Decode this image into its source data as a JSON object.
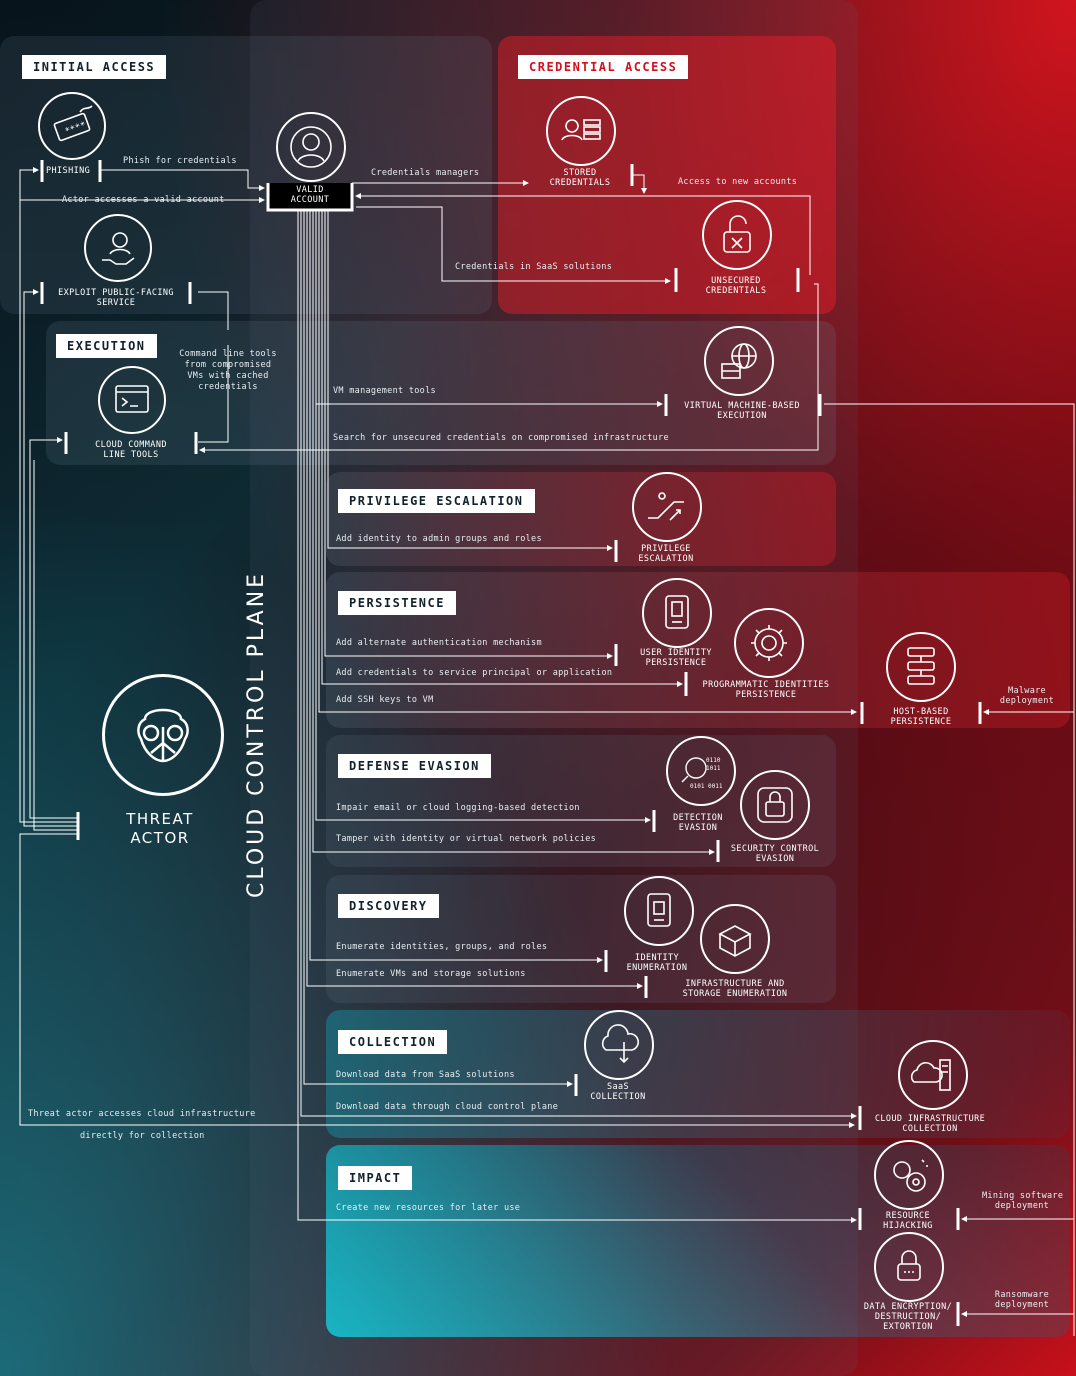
{
  "tactics": {
    "initial_access": "INITIAL ACCESS",
    "credential_access": "CREDENTIAL ACCESS",
    "execution": "EXECUTION",
    "privilege_escalation": "PRIVILEGE ESCALATION",
    "persistence": "PERSISTENCE",
    "defense_evasion": "DEFENSE EVASION",
    "discovery": "DISCOVERY",
    "collection": "COLLECTION",
    "impact": "IMPACT"
  },
  "nodes": {
    "phishing": "PHISHING",
    "valid_account_1": "VALID",
    "valid_account_2": "ACCOUNT",
    "exploit_1": "EXPLOIT PUBLIC-FACING",
    "exploit_2": "SERVICE",
    "stored_cred_1": "STORED",
    "stored_cred_2": "CREDENTIALS",
    "unsecured_cred_1": "UNSECURED",
    "unsecured_cred_2": "CREDENTIALS",
    "cloud_cmd_1": "CLOUD COMMAND",
    "cloud_cmd_2": "LINE TOOLS",
    "vm_exec_1": "VIRTUAL MACHINE-BASED",
    "vm_exec_2": "EXECUTION",
    "priv_esc_1": "PRIVILEGE",
    "priv_esc_2": "ESCALATION",
    "user_persist_1": "USER IDENTITY",
    "user_persist_2": "PERSISTENCE",
    "prog_persist_1": "PROGRAMMATIC IDENTITIES",
    "prog_persist_2": "PERSISTENCE",
    "host_persist_1": "HOST-BASED",
    "host_persist_2": "PERSISTENCE",
    "detection_1": "DETECTION",
    "detection_2": "EVASION",
    "security_1": "SECURITY CONTROL",
    "security_2": "EVASION",
    "identity_1": "IDENTITY",
    "identity_2": "ENUMERATION",
    "infra_1": "INFRASTRUCTURE AND",
    "infra_2": "STORAGE ENUMERATION",
    "saas_1": "SaaS",
    "saas_2": "COLLECTION",
    "cloud_infra_1": "CLOUD INFRASTRUCTURE",
    "cloud_infra_2": "COLLECTION",
    "hijack_1": "RESOURCE",
    "hijack_2": "HIJACKING",
    "encrypt_1": "DATA ENCRYPTION/",
    "encrypt_2": "DESTRUCTION/",
    "encrypt_3": "EXTORTION",
    "threat_1": "THREAT",
    "threat_2": "ACTOR",
    "control_plane": "CLOUD CONTROL PLANE"
  },
  "edges": {
    "phish": "Phish for credentials",
    "actor_valid": "Actor accesses a valid account",
    "cred_managers": "Credentials managers",
    "access_new": "Access to new accounts",
    "cred_saas": "Credentials in SaaS solutions",
    "cmd_1": "Command line tools",
    "cmd_2": "from compromised",
    "cmd_3": "VMs with cached",
    "cmd_4": "credentials",
    "vm_mgmt": "VM management tools",
    "search_unsec": "Search for unsecured credentials on compromised infrastructure",
    "add_admin": "Add identity to admin groups and roles",
    "alt_auth": "Add alternate authentication mechanism",
    "add_sp": "Add credentials to service principal or application",
    "ssh": "Add SSH keys to VM",
    "malware_1": "Malware",
    "malware_2": "deployment",
    "impair": "Impair email or cloud logging-based detection",
    "tamper": "Tamper with identity or virtual network policies",
    "enum_ident": "Enumerate identities, groups, and roles",
    "enum_vm": "Enumerate VMs and storage solutions",
    "dl_saas": "Download data from SaaS solutions",
    "dl_cp": "Download data through cloud control plane",
    "direct_1": "Threat actor accesses cloud infrastructure",
    "direct_2": "directly for collection",
    "create_res": "Create new resources for later use",
    "mining_1": "Mining software",
    "mining_2": "deployment",
    "ransom_1": "Ransomware",
    "ransom_2": "deployment"
  },
  "colors": {
    "accent_red": "#d4101c",
    "line": "#ffffff"
  }
}
